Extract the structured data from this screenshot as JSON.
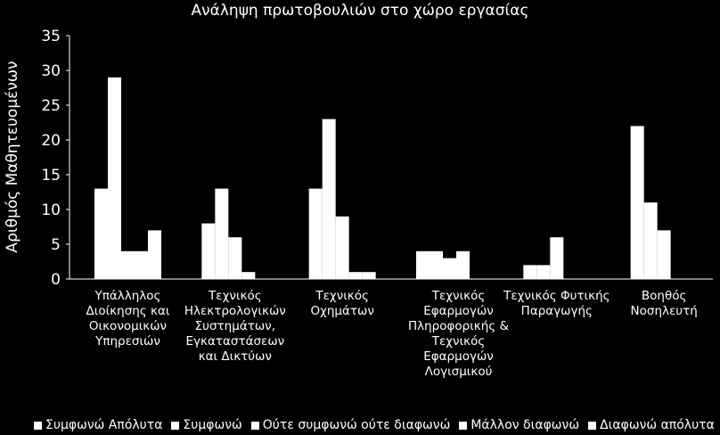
{
  "chart_data": {
    "type": "bar",
    "title": "Ανάληψη πρωτοβουλιών στο χώρο εργασίας",
    "ylabel": "Αριθμός Μαθητευομένων",
    "xlabel": "",
    "ylim": [
      0,
      35
    ],
    "yticks": [
      0,
      5,
      10,
      15,
      20,
      25,
      30,
      35
    ],
    "grid": false,
    "legend_position": "bottom",
    "bar_color": "#ffffff",
    "background": "#000000",
    "categories": [
      "Υπάλληλος Διοίκησης και Οικονομικών Υπηρεσιών",
      "Τεχνικός Ηλεκτρολογικών Συστημάτων, Εγκαταστάσεων και Δικτύων",
      "Τεχνικός Οχημάτων",
      "Τεχνικός Εφαρμογών Πληροφορικής & Τεχνικός Εφαρμογών Λογισμικού",
      "Τεχνικός Φυτικής Παραγωγής",
      "Βοηθός Νοσηλευτή"
    ],
    "category_lines": [
      [
        "Υπάλληλος",
        "Διοίκησης και",
        "Οικονομικών",
        "Υπηρεσιών"
      ],
      [
        "Τεχνικός",
        "Ηλεκτρολογικών",
        "Συστημάτων,",
        "Εγκαταστάσεων",
        "και Δικτύων"
      ],
      [
        "Τεχνικός",
        "Οχημάτων"
      ],
      [
        "Τεχνικός",
        "Εφαρμογών",
        "Πληροφορικής &",
        "Τεχνικός",
        "Εφαρμογών",
        "Λογισμικού"
      ],
      [
        "Τεχνικός Φυτικής",
        "Παραγωγής"
      ],
      [
        "Βοηθός",
        "Νοσηλευτή"
      ]
    ],
    "series": [
      {
        "name": "Συμφωνώ Απόλυτα",
        "values": [
          13,
          8,
          13,
          4,
          2,
          22
        ]
      },
      {
        "name": "Συμφωνώ",
        "values": [
          29,
          13,
          23,
          4,
          2,
          11
        ]
      },
      {
        "name": "Ούτε συμφωνώ ούτε διαφωνώ",
        "values": [
          4,
          6,
          9,
          3,
          6,
          7
        ]
      },
      {
        "name": "Μάλλον διαφωνώ",
        "values": [
          4,
          1,
          1,
          4,
          0,
          0
        ]
      },
      {
        "name": "Διαφωνώ απόλυτα",
        "values": [
          7,
          0,
          1,
          0,
          0,
          0
        ]
      }
    ]
  }
}
